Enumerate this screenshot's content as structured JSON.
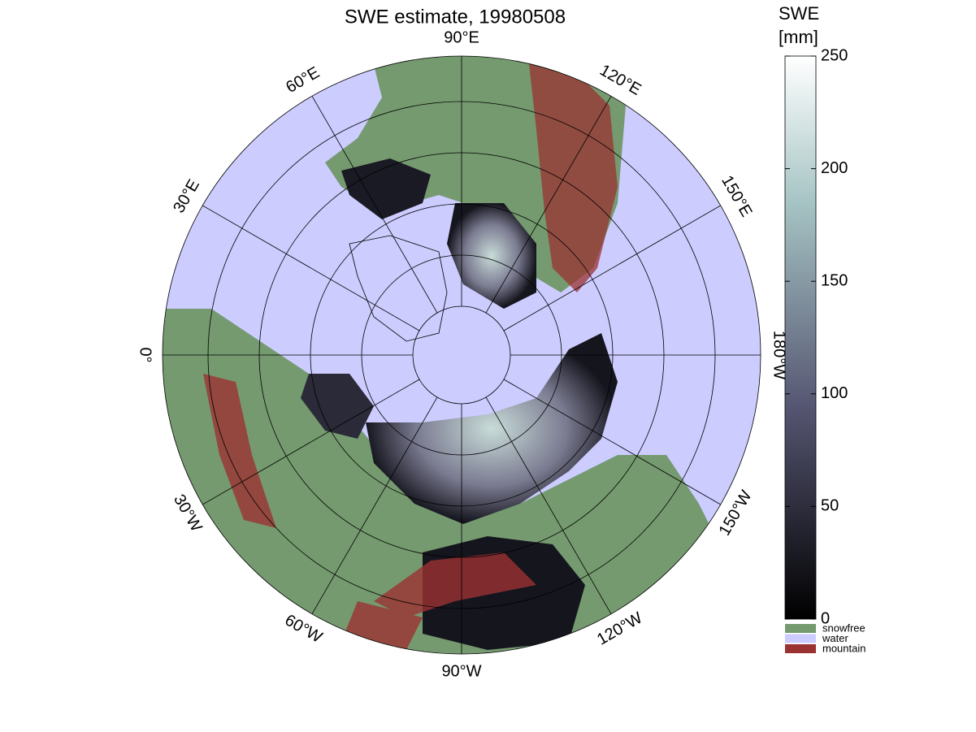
{
  "chart_data": {
    "type": "map",
    "title": "SWE estimate, 19980508",
    "longitude_labels": [
      "0°",
      "30°W",
      "60°W",
      "90°W",
      "120°W",
      "150°W",
      "180°W",
      "150°E",
      "120°E",
      "90°E",
      "60°E",
      "30°E"
    ],
    "colorbar": {
      "label": [
        "SWE",
        "[mm]"
      ],
      "ylim": [
        0,
        250
      ],
      "yticks": [
        0,
        50,
        100,
        150,
        200,
        250
      ]
    },
    "legend": [
      {
        "name": "snowfree",
        "color": "#759a6f"
      },
      {
        "name": "water",
        "color": "#ccccff"
      },
      {
        "name": "mountain",
        "color": "#9b3232"
      }
    ]
  }
}
